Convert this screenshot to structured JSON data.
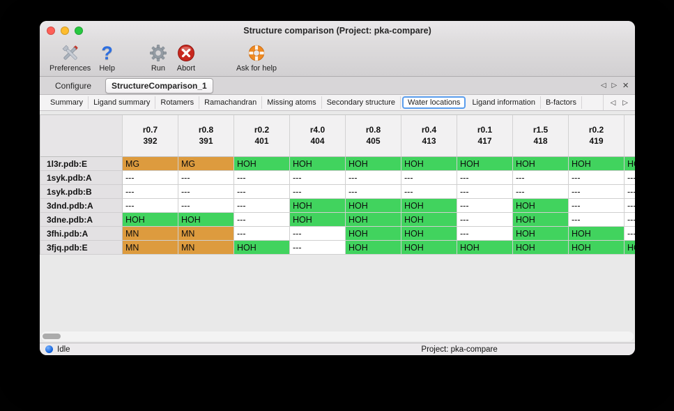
{
  "window": {
    "title": "Structure comparison (Project: pka-compare)"
  },
  "toolbar": {
    "items": [
      {
        "label": "Preferences",
        "icon": "crossed-tools"
      },
      {
        "label": "Help",
        "icon": "question-mark"
      },
      {
        "label": "Run",
        "icon": "gear"
      },
      {
        "label": "Abort",
        "icon": "stop-x"
      },
      {
        "label": "Ask for help",
        "icon": "lifebuoy"
      }
    ]
  },
  "tabs": {
    "items": [
      {
        "label": "Configure",
        "active": false
      },
      {
        "label": "StructureComparison_1",
        "active": true
      }
    ]
  },
  "subtabs": {
    "items": [
      {
        "label": "Summary",
        "selected": false
      },
      {
        "label": "Ligand summary",
        "selected": false
      },
      {
        "label": "Rotamers",
        "selected": false
      },
      {
        "label": "Ramachandran",
        "selected": false
      },
      {
        "label": "Missing atoms",
        "selected": false
      },
      {
        "label": "Secondary structure",
        "selected": false
      },
      {
        "label": "Water locations",
        "selected": true
      },
      {
        "label": "Ligand information",
        "selected": false
      },
      {
        "label": "B-factors",
        "selected": false
      }
    ]
  },
  "icons": {
    "prev_glyph": "◁",
    "next_glyph": "▷",
    "close_glyph": "×",
    "help_glyph": "?"
  },
  "table": {
    "columns": [
      {
        "line1": "r0.7",
        "line2": "392"
      },
      {
        "line1": "r0.8",
        "line2": "391"
      },
      {
        "line1": "r0.2",
        "line2": "401"
      },
      {
        "line1": "r4.0",
        "line2": "404"
      },
      {
        "line1": "r0.8",
        "line2": "405"
      },
      {
        "line1": "r0.4",
        "line2": "413"
      },
      {
        "line1": "r0.1",
        "line2": "417"
      },
      {
        "line1": "r1.5",
        "line2": "418"
      },
      {
        "line1": "r0.2",
        "line2": "419"
      },
      {
        "line1": "",
        "line2": ""
      }
    ],
    "rows": [
      {
        "label": "1l3r.pdb:E",
        "cells": [
          "MG",
          "MG",
          "HOH",
          "HOH",
          "HOH",
          "HOH",
          "HOH",
          "HOH",
          "HOH",
          "HOH"
        ]
      },
      {
        "label": "1syk.pdb:A",
        "cells": [
          "---",
          "---",
          "---",
          "---",
          "---",
          "---",
          "---",
          "---",
          "---",
          "---"
        ]
      },
      {
        "label": "1syk.pdb:B",
        "cells": [
          "---",
          "---",
          "---",
          "---",
          "---",
          "---",
          "---",
          "---",
          "---",
          "---"
        ]
      },
      {
        "label": "3dnd.pdb:A",
        "cells": [
          "---",
          "---",
          "---",
          "HOH",
          "HOH",
          "HOH",
          "---",
          "HOH",
          "---",
          "---"
        ]
      },
      {
        "label": "3dne.pdb:A",
        "cells": [
          "HOH",
          "HOH",
          "---",
          "HOH",
          "HOH",
          "HOH",
          "---",
          "HOH",
          "---",
          "---"
        ]
      },
      {
        "label": "3fhi.pdb:A",
        "cells": [
          "MN",
          "MN",
          "---",
          "---",
          "HOH",
          "HOH",
          "---",
          "HOH",
          "HOH",
          "---"
        ]
      },
      {
        "label": "3fjq.pdb:E",
        "cells": [
          "MN",
          "MN",
          "HOH",
          "---",
          "HOH",
          "HOH",
          "HOH",
          "HOH",
          "HOH",
          "HOH"
        ]
      }
    ],
    "cell_colors": {
      "HOH": "#41d35e",
      "MG": "#dd9b3e",
      "MN": "#dd9b3e",
      "---": "#ffffff"
    }
  },
  "statusbar": {
    "status": "Idle",
    "project": "Project: pka-compare"
  },
  "colors": {
    "traffic_close": "#ff5f57",
    "traffic_minimize": "#febc2e",
    "traffic_zoom": "#28c840",
    "selected_subtab_border": "#5a9ded",
    "status_dot": "#1667d9"
  }
}
